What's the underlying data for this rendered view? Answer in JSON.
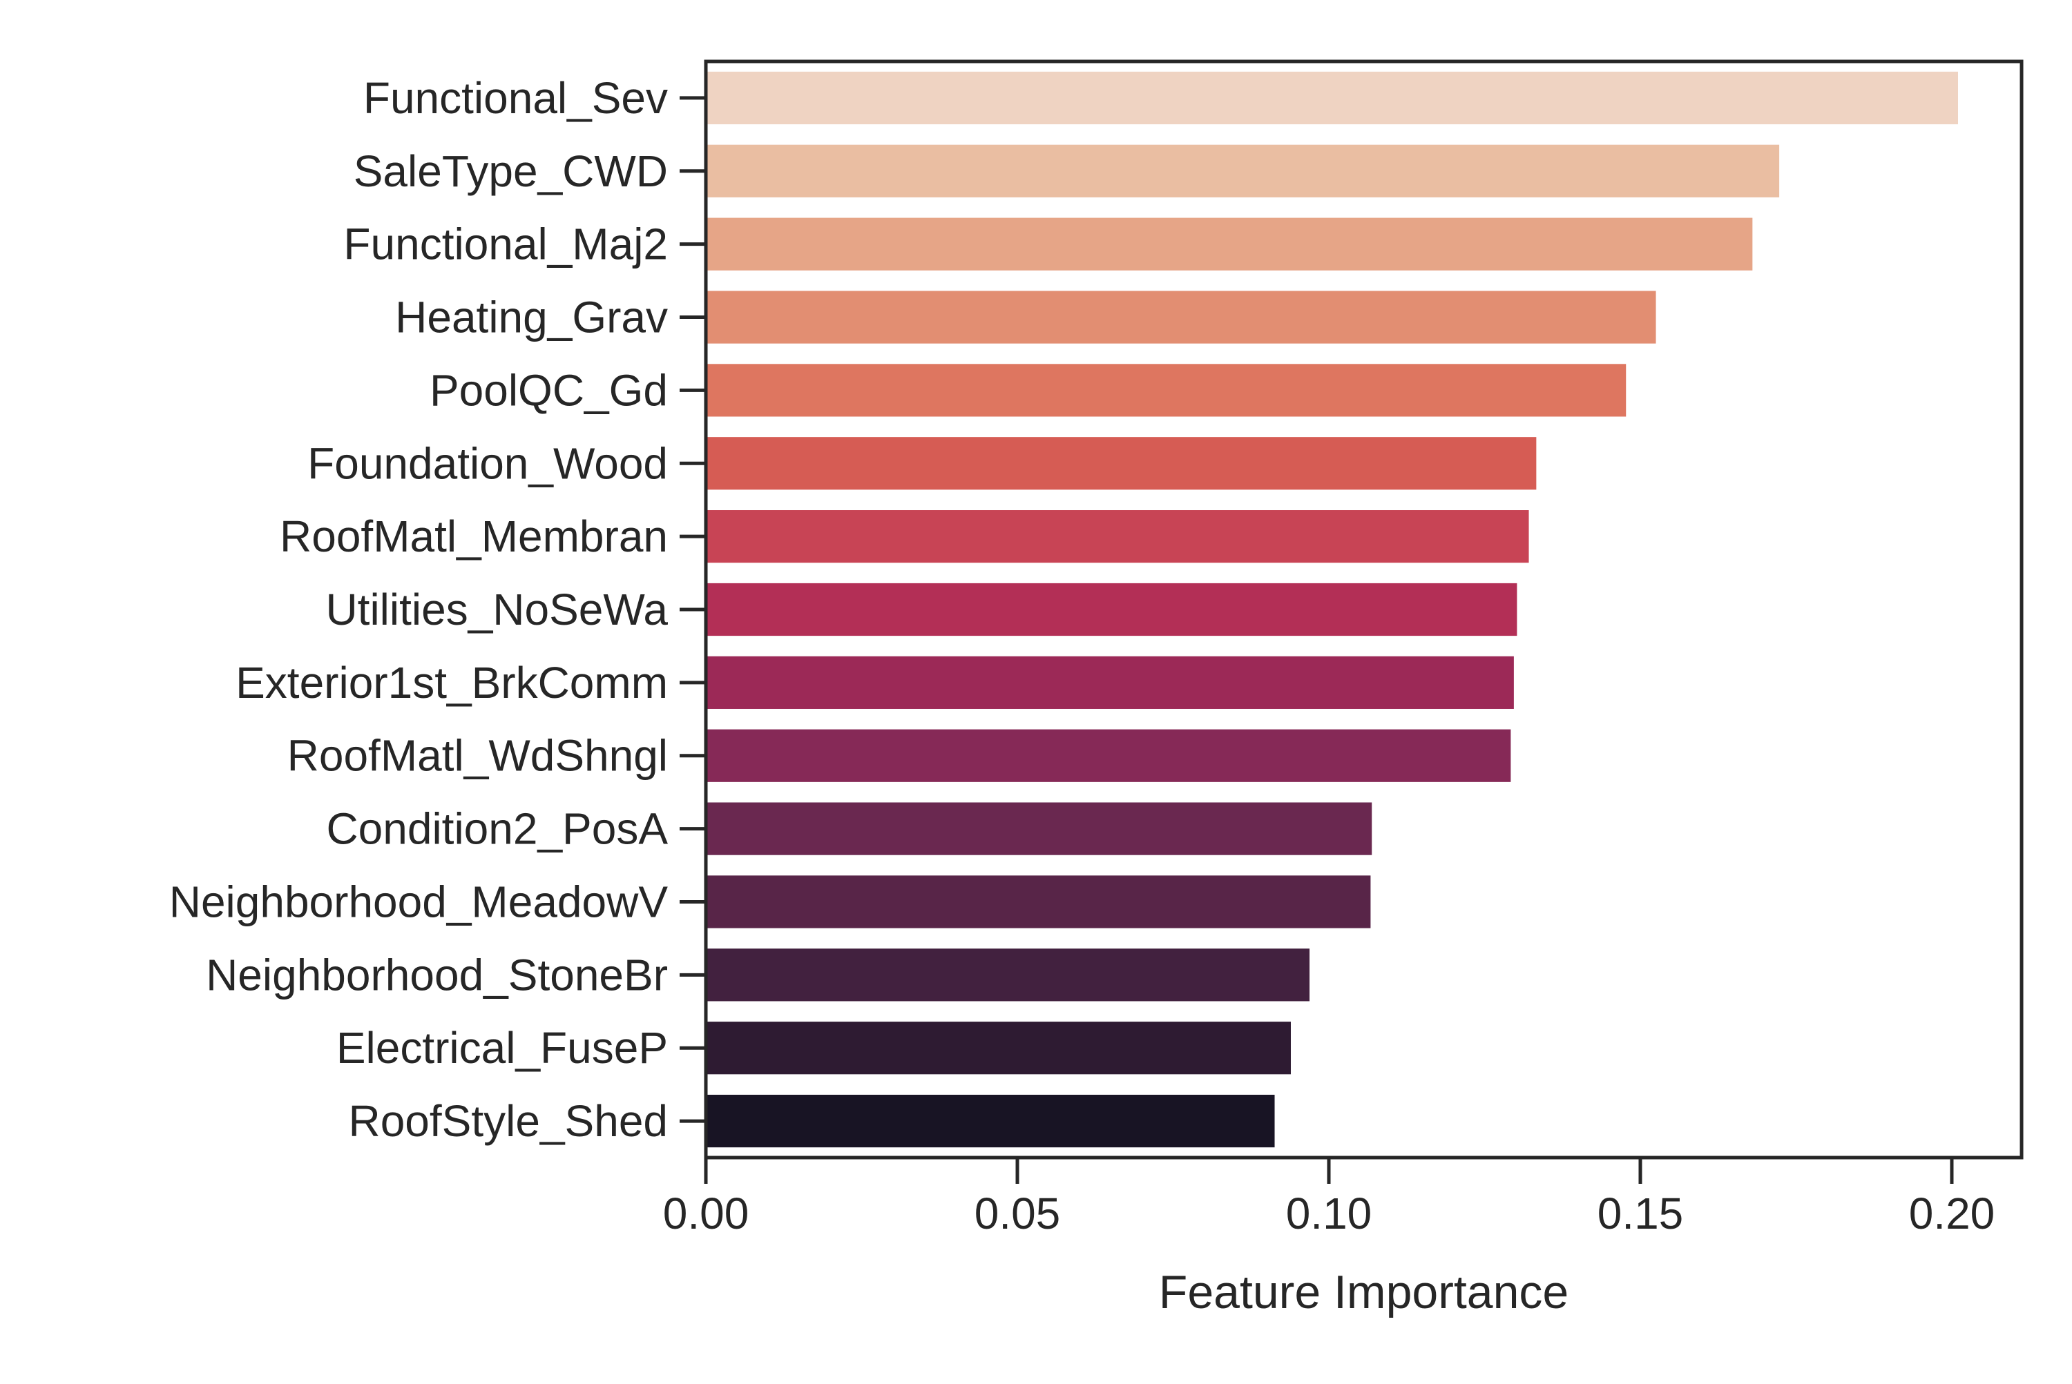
{
  "chart_data": {
    "type": "bar",
    "orientation": "horizontal",
    "title": "",
    "xlabel": "Feature Importance",
    "ylabel": "",
    "xlim": [
      0,
      0.2112
    ],
    "xticks": [
      0.0,
      0.05,
      0.1,
      0.15,
      0.2
    ],
    "xtick_labels": [
      "0.00",
      "0.05",
      "0.10",
      "0.15",
      "0.20"
    ],
    "grid": false,
    "legend": "none",
    "categories": [
      "Functional_Sev",
      "SaleType_CWD",
      "Functional_Maj2",
      "Heating_Grav",
      "PoolQC_Gd",
      "Foundation_Wood",
      "RoofMatl_Membran",
      "Utilities_NoSeWa",
      "Exterior1st_BrkComm",
      "RoofMatl_WdShngl",
      "Condition2_PosA",
      "Neighborhood_MeadowV",
      "Neighborhood_StoneBr",
      "Electrical_FuseP",
      "RoofStyle_Shed"
    ],
    "values": [
      0.201,
      0.1723,
      0.168,
      0.1525,
      0.1477,
      0.1333,
      0.1321,
      0.1302,
      0.1297,
      0.1292,
      0.1069,
      0.1067,
      0.0969,
      0.0939,
      0.0913
    ],
    "colors": [
      "#efd3c2",
      "#eabea2",
      "#e6a587",
      "#e28e72",
      "#de7660",
      "#d65c54",
      "#c84455",
      "#b32f56",
      "#9c2957",
      "#862957",
      "#6a2850",
      "#582548",
      "#42213f",
      "#2e1b32",
      "#181424"
    ]
  },
  "style": {
    "axis_color": "#262626",
    "background": "#ffffff"
  }
}
